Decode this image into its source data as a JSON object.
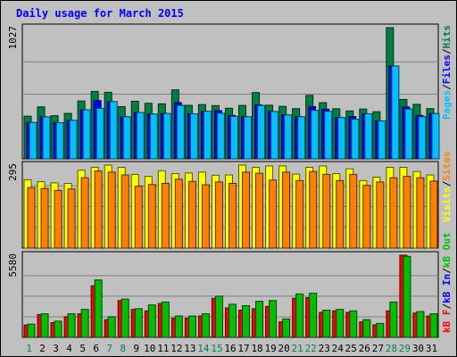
{
  "chart_data": {
    "type": "bar",
    "title": "Daily usage for March 2015",
    "categories": [
      "1",
      "2",
      "3",
      "4",
      "5",
      "6",
      "7",
      "8",
      "9",
      "10",
      "11",
      "12",
      "13",
      "14",
      "15",
      "16",
      "17",
      "18",
      "19",
      "20",
      "21",
      "22",
      "23",
      "24",
      "25",
      "26",
      "27",
      "28",
      "29",
      "30",
      "31"
    ],
    "weekend_days": [
      "1",
      "7",
      "8",
      "14",
      "15",
      "21",
      "22",
      "28",
      "29"
    ],
    "panels": [
      {
        "name": "hits-files-pages",
        "ylabel": "1027",
        "ylim": [
          0,
          1027
        ],
        "legend": [
          "Pages",
          "/",
          "Files",
          "/",
          "Hits"
        ],
        "series": [
          {
            "name": "Hits",
            "color": "#008040",
            "values": [
              334,
              407,
              338,
              356,
              453,
              528,
              521,
              409,
              451,
              435,
              431,
              540,
              419,
              425,
              417,
              396,
              418,
              519,
              420,
              411,
              393,
              497,
              440,
              392,
              375,
              390,
              369,
              1027,
              465,
              427,
              393
            ]
          },
          {
            "name": "Files",
            "color": "#0000ff",
            "values": [
              285,
              329,
              283,
              302,
              384,
              456,
              448,
              330,
              363,
              351,
              355,
              440,
              353,
              372,
              377,
              340,
              330,
              422,
              371,
              344,
              330,
              409,
              389,
              324,
              331,
              353,
              297,
              727,
              406,
              340,
              355
            ]
          },
          {
            "name": "Pages",
            "color": "#00c0ff",
            "values": [
              285,
              329,
              283,
              302,
              384,
              395,
              448,
              330,
              363,
              351,
              355,
              418,
              353,
              372,
              357,
              333,
              330,
              418,
              371,
              344,
              330,
              380,
              372,
              324,
              310,
              353,
              297,
              727,
              390,
              330,
              355
            ]
          }
        ]
      },
      {
        "name": "visits-sites",
        "ylabel": "295",
        "ylim": [
          0,
          295
        ],
        "legend": [
          "Visits",
          "/",
          "Sites"
        ],
        "series": [
          {
            "name": "Visits",
            "color": "#ffff00",
            "values": [
              243,
              236,
              232,
              230,
              277,
              287,
              295,
              287,
              262,
              255,
              275,
              265,
              267,
              270,
              259,
              260,
              295,
              287,
              292,
              292,
              263,
              287,
              292,
              265,
              282,
              240,
              252,
              287,
              287,
              272,
              260
            ]
          },
          {
            "name": "Sites",
            "color": "#ff8000",
            "values": [
              215,
              212,
              205,
              210,
              250,
              274,
              270,
              260,
              220,
              226,
              230,
              245,
              237,
              225,
              235,
              230,
              270,
              266,
              242,
              270,
              240,
              272,
              262,
              240,
              262,
              223,
              235,
              250,
              255,
              250,
              238
            ]
          }
        ]
      },
      {
        "name": "kbytes",
        "ylabel": "5580",
        "ylim": [
          0,
          5580
        ],
        "legend": [
          "kB F",
          "/",
          "kB In",
          "/",
          "kB Out"
        ],
        "series": [
          {
            "name": "kB F",
            "color": "#ff0000",
            "values": [
              840,
              1550,
              1000,
              1400,
              1600,
              3500,
              1200,
              2500,
              1900,
              1800,
              2300,
              1300,
              1300,
              1450,
              2650,
              2000,
              1850,
              1950,
              2100,
              1050,
              2650,
              2700,
              1700,
              1800,
              1700,
              1050,
              850,
              1800,
              5580,
              1650,
              1450
            ]
          },
          {
            "name": "kB Out",
            "color": "#00c000",
            "values": [
              900,
              1600,
              1100,
              1600,
              1900,
              3900,
              1400,
              2600,
              1950,
              2200,
              2400,
              1450,
              1450,
              1600,
              2800,
              2250,
              2150,
              2450,
              2500,
              1250,
              2950,
              3000,
              1850,
              1900,
              1800,
              1200,
              950,
              2400,
              5500,
              1750,
              1600
            ]
          }
        ]
      }
    ]
  },
  "colors": {
    "background": "#c0c0c0",
    "plot_area": "#c0c0c0",
    "title": "#0000ff",
    "weekday_label": "#000000",
    "weekend_label": "#00805c",
    "gridline": "#808080"
  }
}
